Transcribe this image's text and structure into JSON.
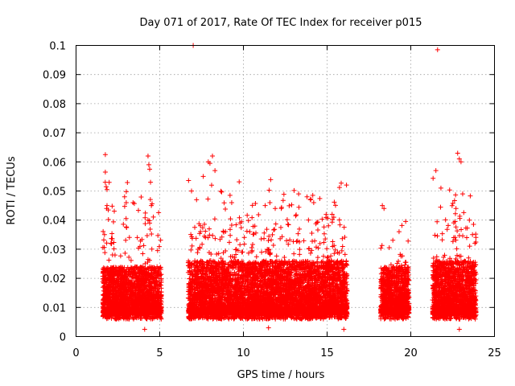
{
  "chart_data": {
    "type": "scatter",
    "title": "Day 071 of 2017, Rate Of TEC Index for receiver p015",
    "xlabel": "GPS time / hours",
    "ylabel": "ROTI / TECUs",
    "xlim": [
      0,
      25
    ],
    "ylim": [
      0,
      0.1
    ],
    "x_ticks": [
      0,
      5,
      10,
      15,
      20,
      25
    ],
    "y_ticks": [
      0,
      0.01,
      0.02,
      0.03,
      0.04,
      0.05,
      0.06,
      0.07,
      0.08,
      0.09,
      0.1
    ],
    "grid": true,
    "marker": "+",
    "color": "#ff0000",
    "point_density_per_hour": 700,
    "segments": [
      {
        "x": [
          1.6,
          5.1
        ],
        "base": 0.008,
        "spread": 0.016,
        "max": 0.063
      },
      {
        "x": [
          6.7,
          16.2
        ],
        "base": 0.008,
        "spread": 0.018,
        "max": 0.063
      },
      {
        "x": [
          18.2,
          19.9
        ],
        "base": 0.008,
        "spread": 0.016,
        "max": 0.046
      },
      {
        "x": [
          21.3,
          23.9
        ],
        "base": 0.008,
        "spread": 0.018,
        "max": 0.063
      }
    ],
    "highlight_points": [
      {
        "x": 1.75,
        "y": 0.0625
      },
      {
        "x": 1.75,
        "y": 0.0565
      },
      {
        "x": 1.8,
        "y": 0.0515
      },
      {
        "x": 1.85,
        "y": 0.045
      },
      {
        "x": 1.7,
        "y": 0.035
      },
      {
        "x": 2.9,
        "y": 0.048
      },
      {
        "x": 3.0,
        "y": 0.046
      },
      {
        "x": 4.3,
        "y": 0.062
      },
      {
        "x": 4.35,
        "y": 0.059
      },
      {
        "x": 4.4,
        "y": 0.0575
      },
      {
        "x": 4.45,
        "y": 0.053
      },
      {
        "x": 4.5,
        "y": 0.045
      },
      {
        "x": 4.3,
        "y": 0.04
      },
      {
        "x": 4.4,
        "y": 0.039
      },
      {
        "x": 7.0,
        "y": 0.1
      },
      {
        "x": 6.9,
        "y": 0.05
      },
      {
        "x": 7.2,
        "y": 0.047
      },
      {
        "x": 7.6,
        "y": 0.055
      },
      {
        "x": 7.9,
        "y": 0.06
      },
      {
        "x": 8.0,
        "y": 0.0595
      },
      {
        "x": 8.15,
        "y": 0.062
      },
      {
        "x": 8.3,
        "y": 0.057
      },
      {
        "x": 8.1,
        "y": 0.052
      },
      {
        "x": 9.2,
        "y": 0.0485
      },
      {
        "x": 9.3,
        "y": 0.046
      },
      {
        "x": 11.3,
        "y": 0.045
      },
      {
        "x": 11.9,
        "y": 0.044
      },
      {
        "x": 13.3,
        "y": 0.049
      },
      {
        "x": 13.8,
        "y": 0.048
      },
      {
        "x": 14.0,
        "y": 0.047
      },
      {
        "x": 14.2,
        "y": 0.046
      },
      {
        "x": 15.3,
        "y": 0.042
      },
      {
        "x": 15.4,
        "y": 0.041
      },
      {
        "x": 18.3,
        "y": 0.045
      },
      {
        "x": 18.4,
        "y": 0.044
      },
      {
        "x": 19.3,
        "y": 0.036
      },
      {
        "x": 21.6,
        "y": 0.0985
      },
      {
        "x": 21.5,
        "y": 0.057
      },
      {
        "x": 21.8,
        "y": 0.051
      },
      {
        "x": 22.8,
        "y": 0.063
      },
      {
        "x": 22.9,
        "y": 0.061
      },
      {
        "x": 23.0,
        "y": 0.06
      },
      {
        "x": 23.1,
        "y": 0.049
      },
      {
        "x": 22.7,
        "y": 0.044
      },
      {
        "x": 23.5,
        "y": 0.04
      },
      {
        "x": 4.1,
        "y": 0.0025
      },
      {
        "x": 11.5,
        "y": 0.003
      },
      {
        "x": 16.0,
        "y": 0.0025
      },
      {
        "x": 22.9,
        "y": 0.0025
      }
    ]
  }
}
